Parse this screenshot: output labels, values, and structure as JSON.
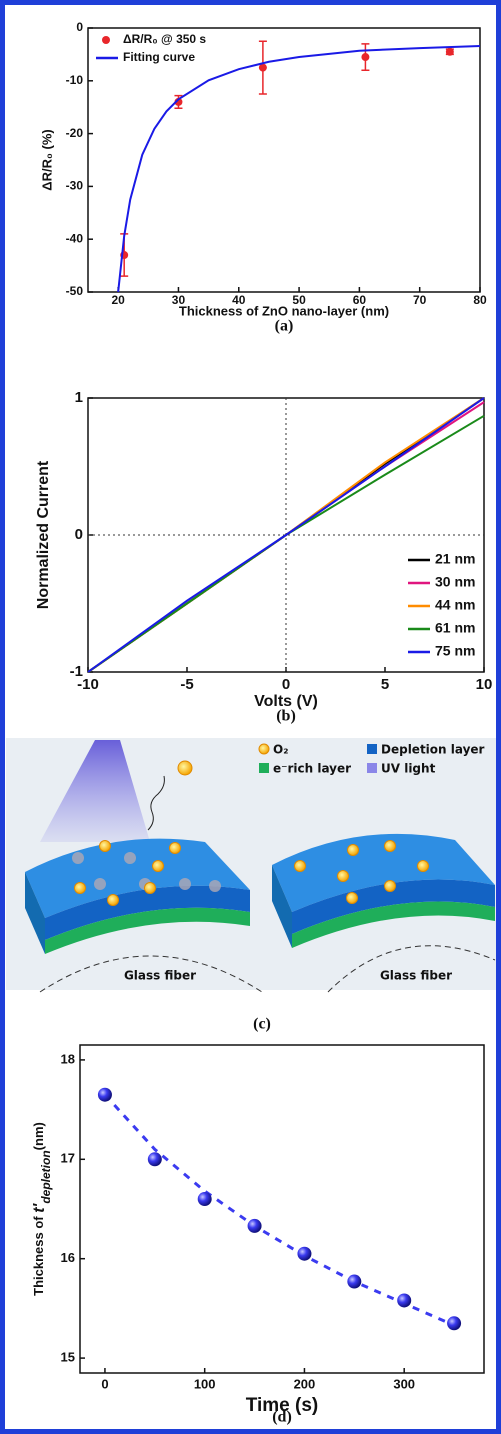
{
  "chart_data": [
    {
      "type": "scatter",
      "caption": "(a)",
      "xlabel": "Thickness of ZnO nano-layer  (nm)",
      "ylabel": "ΔR/R₀ (%)",
      "xlim": [
        15,
        80
      ],
      "ylim": [
        -50,
        0
      ],
      "xticks": [
        20,
        30,
        40,
        50,
        60,
        70,
        80
      ],
      "yticks": [
        -50,
        -40,
        -30,
        -20,
        -10,
        0
      ],
      "legend": "upper left",
      "series": [
        {
          "name": "ΔR/R₀ @ 350 s",
          "kind": "points",
          "color": "#e8262b",
          "x": [
            21,
            30,
            44,
            61,
            75
          ],
          "values": [
            -43,
            -14,
            -7.5,
            -5.5,
            -4.5
          ],
          "errors": [
            4,
            1.2,
            5,
            2.5,
            0.5
          ]
        },
        {
          "name": "Fitting curve",
          "kind": "line",
          "color": "#1a1ae6",
          "x": [
            20,
            21,
            22,
            24,
            26,
            28,
            30,
            35,
            40,
            45,
            50,
            60,
            70,
            80
          ],
          "values": [
            -50,
            -39.4,
            -32.5,
            -24,
            -19.1,
            -15.8,
            -13.5,
            -9.9,
            -7.8,
            -6.4,
            -5.5,
            -4.3,
            -3.8,
            -3.4
          ]
        }
      ]
    },
    {
      "type": "line",
      "caption": "(b)",
      "xlabel": "Volts (V)",
      "ylabel": "Normalized Current",
      "xlim": [
        -10,
        10
      ],
      "ylim": [
        -1,
        1
      ],
      "xticks": [
        -10,
        -5,
        0,
        5,
        10
      ],
      "yticks": [
        -1,
        0,
        1
      ],
      "zero_lines": true,
      "legend": "lower right",
      "x": [
        -10,
        -5,
        0,
        5,
        10
      ],
      "series": [
        {
          "name": "21 nm",
          "color": "#000000",
          "values": [
            -1,
            -0.5,
            0,
            0.52,
            1
          ]
        },
        {
          "name": "30 nm",
          "color": "#e0157f",
          "values": [
            -1,
            -0.5,
            0,
            0.5,
            0.97
          ]
        },
        {
          "name": "44 nm",
          "color": "#ff8c00",
          "values": [
            -1,
            -0.5,
            0,
            0.53,
            1
          ]
        },
        {
          "name": "61 nm",
          "color": "#1a8a1a",
          "values": [
            -1,
            -0.5,
            0,
            0.44,
            0.87
          ]
        },
        {
          "name": "75 nm",
          "color": "#1a1ae6",
          "values": [
            -1,
            -0.48,
            0,
            0.5,
            1
          ]
        }
      ]
    },
    {
      "type": "scatter",
      "caption": "(d)",
      "xlabel": "Time (s)",
      "ylabel": [
        "Thickness of ",
        "t'",
        "depletion",
        "(nm)"
      ],
      "xlim": [
        -25,
        380
      ],
      "ylim": [
        14.85,
        18.15
      ],
      "xticks": [
        0,
        100,
        200,
        300
      ],
      "yticks": [
        15,
        16,
        17,
        18
      ],
      "x": [
        0,
        50,
        100,
        150,
        200,
        250,
        300,
        350
      ],
      "series": [
        {
          "kind": "line",
          "style": "dashed",
          "color": "#3b3bf0",
          "values": [
            17.65,
            17.1,
            16.68,
            16.33,
            16.03,
            15.77,
            15.55,
            15.33
          ]
        },
        {
          "kind": "points",
          "color": "#2a2ae0",
          "values": [
            17.65,
            17.0,
            16.6,
            16.33,
            16.05,
            15.77,
            15.58,
            15.35
          ]
        }
      ]
    }
  ],
  "diagram": {
    "caption": "(c)",
    "legend": [
      "O₂",
      "Depletion layer",
      "e⁻rich layer",
      "UV light"
    ],
    "labels": [
      "Glass fiber",
      "Glass fiber"
    ]
  }
}
